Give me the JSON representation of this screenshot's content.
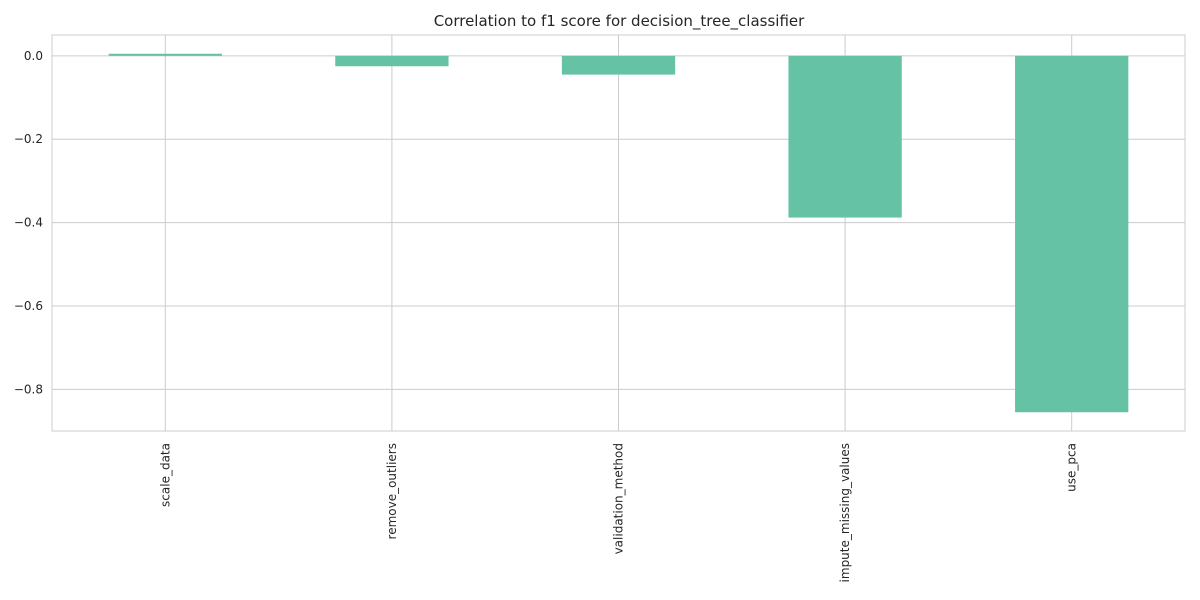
{
  "chart_data": {
    "type": "bar",
    "title": "Correlation to f1 score for decision_tree_classifier",
    "xlabel": "",
    "ylabel": "",
    "categories": [
      "scale_data",
      "remove_outliers",
      "validation_method",
      "impute_missing_values",
      "use_pca"
    ],
    "values": [
      0.005,
      -0.025,
      -0.045,
      -0.388,
      -0.855
    ],
    "ylim": [
      -0.9,
      0.05
    ],
    "yticks": [
      0.0,
      -0.2,
      -0.4,
      -0.6,
      -0.8
    ],
    "ytick_labels": [
      "0.0",
      "−0.2",
      "−0.4",
      "−0.6",
      "−0.8"
    ],
    "grid": true,
    "legend": "none",
    "bar_color": "#66c2a5",
    "grid_color": "#cccccc",
    "axis_color": "#cccccc"
  }
}
